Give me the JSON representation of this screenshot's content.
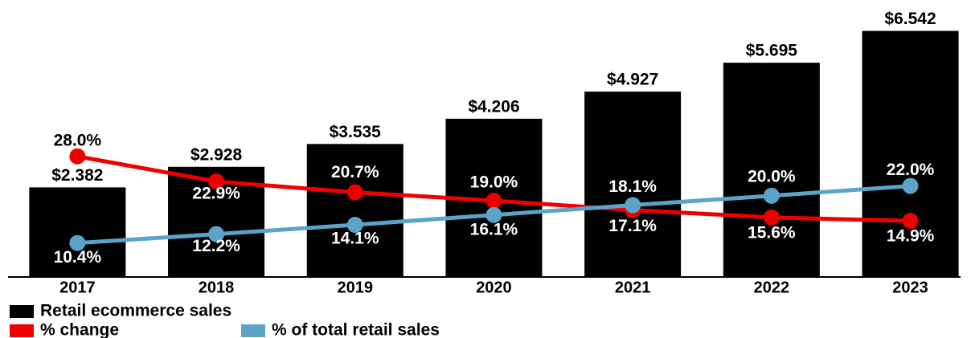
{
  "chart_data": {
    "type": "bar",
    "categories": [
      "2017",
      "2018",
      "2019",
      "2020",
      "2021",
      "2022",
      "2023"
    ],
    "ylim": [
      0,
      7
    ],
    "y2lim": [
      3.5,
      57
    ],
    "series": [
      {
        "name": "Retail ecommerce sales",
        "color": "#000000",
        "type": "bar",
        "values": [
          2.382,
          2.928,
          3.535,
          4.206,
          4.927,
          5.695,
          6.542
        ],
        "value_labels": [
          "$2.382",
          "$2.928",
          "$3.535",
          "$4.206",
          "$4.927",
          "$5.695",
          "$6.542"
        ]
      },
      {
        "name": "% change",
        "color": "#ee0000",
        "type": "line",
        "axis": "y2",
        "values": [
          28.0,
          22.9,
          20.7,
          19.0,
          17.1,
          15.6,
          14.9
        ],
        "value_labels": [
          "28.0%",
          "22.9%",
          "20.7%",
          "19.0%",
          "17.1%",
          "15.6%",
          "14.9%"
        ]
      },
      {
        "name": "% of total retail sales",
        "color": "#5ba3c9",
        "type": "line",
        "axis": "y2",
        "values": [
          10.4,
          12.2,
          14.1,
          16.1,
          18.1,
          20.0,
          22.0
        ],
        "value_labels": [
          "10.4%",
          "12.2%",
          "14.1%",
          "16.1%",
          "18.1%",
          "20.0%",
          "22.0%"
        ]
      }
    ]
  }
}
